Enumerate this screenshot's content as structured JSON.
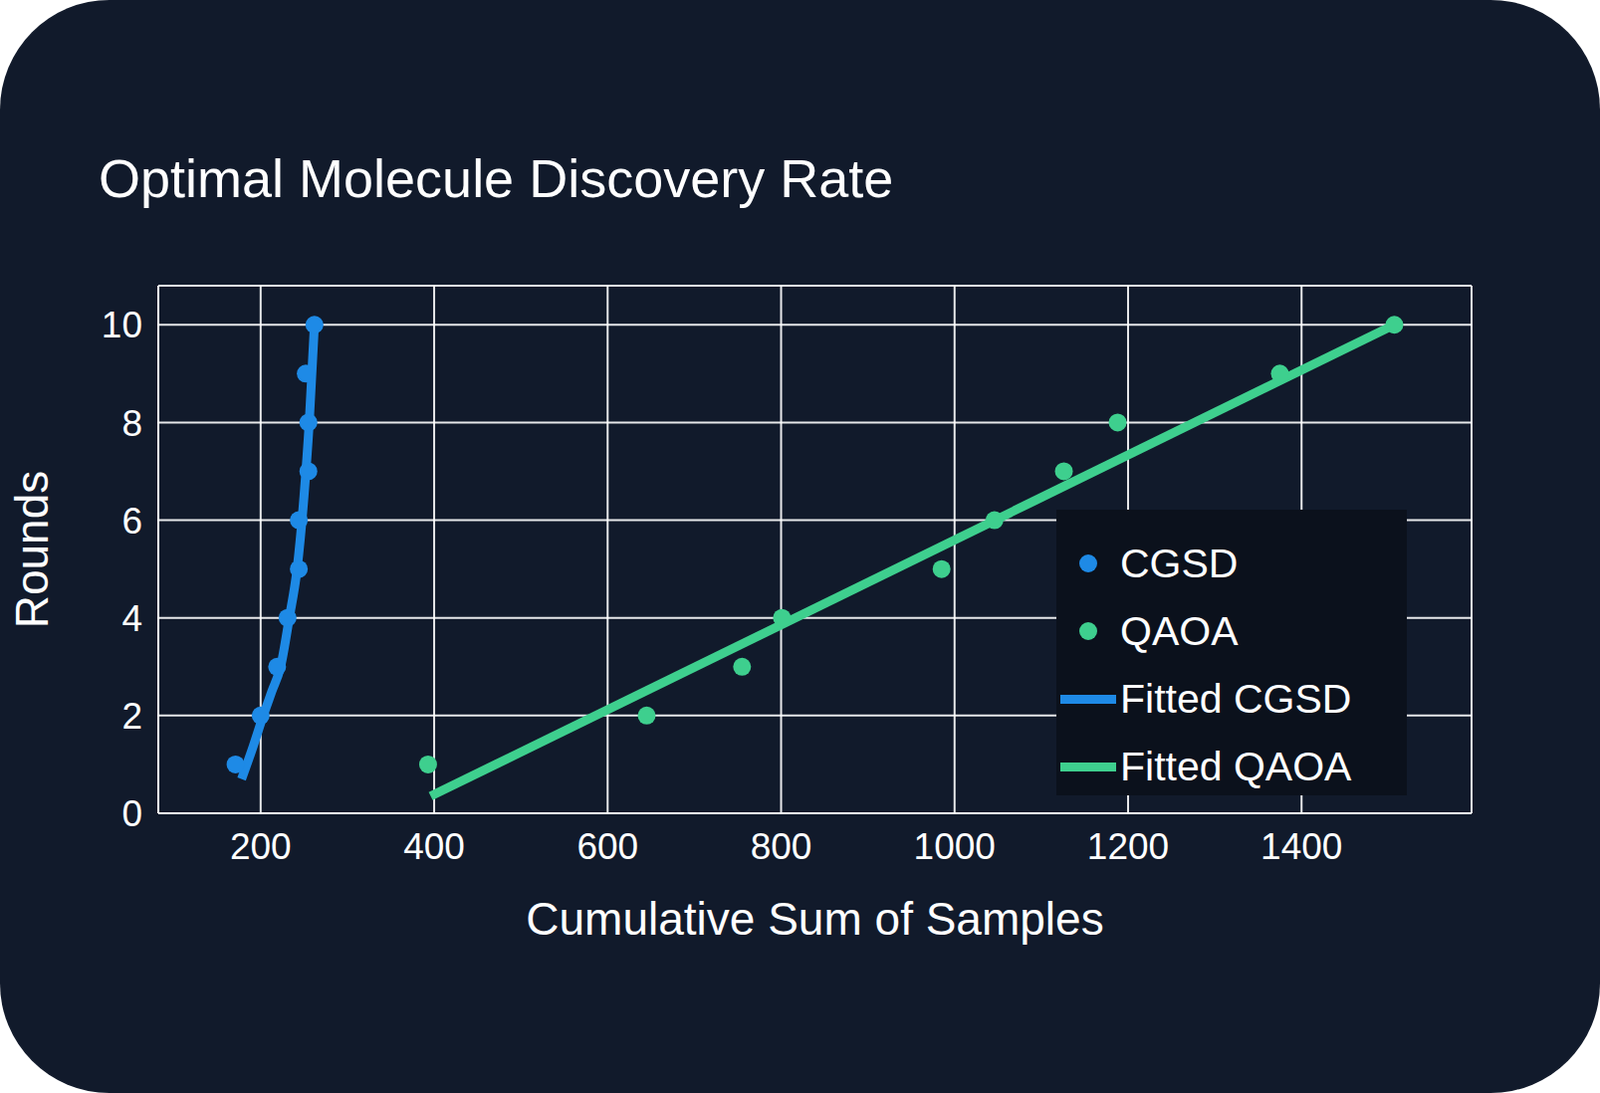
{
  "chart_data": {
    "type": "scatter",
    "title": "Optimal Molecule Discovery Rate",
    "x_label": "Cumulative Sum of Samples",
    "y_label": "Rounds",
    "xlim": [
      82,
      1596
    ],
    "ylim": [
      0,
      10.8
    ],
    "xticks": [
      200,
      400,
      600,
      800,
      1000,
      1200,
      1400
    ],
    "yticks": [
      0,
      2,
      4,
      6,
      8,
      10
    ],
    "grid": true,
    "legend": "right",
    "series": [
      {
        "name": "CGSD",
        "type": "scatter",
        "marker": "circle",
        "color": "#1e8ae6",
        "x": [
          171,
          200,
          219,
          231,
          244,
          244,
          255,
          255,
          252,
          262
        ],
        "values": [
          1,
          2,
          3,
          4,
          5,
          6,
          7,
          8,
          9,
          10
        ]
      },
      {
        "name": "QAOA",
        "type": "scatter",
        "marker": "circle",
        "color": "#3ecf8e",
        "x": [
          393,
          645,
          755,
          801,
          985,
          1046,
          1126,
          1188,
          1375,
          1507
        ],
        "values": [
          1,
          2,
          3,
          4,
          5,
          6,
          7,
          8,
          9,
          10
        ]
      },
      {
        "name": "Fitted CGSD",
        "type": "line",
        "line_style": "solid",
        "color": "#1e8ae6",
        "x": [
          178,
          190,
          203,
          213,
          223,
          233,
          242,
          250,
          256,
          262
        ],
        "values": [
          0.7,
          1.3,
          2,
          2.5,
          3,
          4,
          5,
          6.5,
          8,
          10
        ]
      },
      {
        "name": "Fitted QAOA",
        "type": "line",
        "line_style": "solid",
        "color": "#3ecf8e",
        "x": [
          396,
          1507
        ],
        "values": [
          0.35,
          10
        ]
      }
    ]
  }
}
